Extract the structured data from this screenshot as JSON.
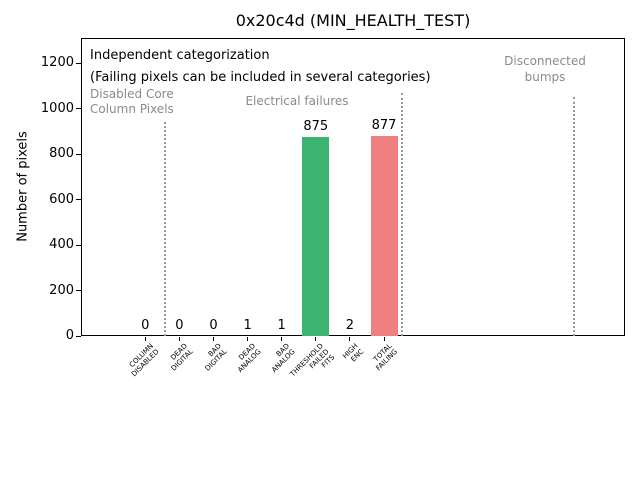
{
  "chart_data": {
    "type": "bar",
    "title": "0x20c4d (MIN_HEALTH_TEST)",
    "ylabel": "Number of pixels",
    "xlabel": "",
    "categories": [
      "COLUMN\nDISABLED",
      "DEAD\nDIGITAL",
      "BAD\nDIGITAL",
      "DEAD\nANALOG",
      "BAD\nANALOG",
      "THRESHOLD\nFAILED\nFITS",
      "HIGH\nENC",
      "TOTAL\nFAILING"
    ],
    "values": [
      0,
      0,
      0,
      1,
      1,
      875,
      2,
      877
    ],
    "bar_colors": [
      null,
      null,
      null,
      null,
      null,
      "#3cb371",
      null,
      "#f08080"
    ],
    "yticks": [
      0,
      200,
      400,
      600,
      800,
      1000,
      1200
    ],
    "ylim": [
      0,
      1310
    ],
    "grid": false,
    "legend": false,
    "annotations": {
      "heading": "Independent categorization",
      "subheading": "(Failing pixels can be included in several categories)",
      "sections": [
        {
          "label": "Disabled Core\nColumn Pixels"
        },
        {
          "label": "Electrical failures"
        },
        {
          "label": "Disconnected\nbumps"
        }
      ]
    },
    "colors": {
      "pass_bar": "#3cb371",
      "fail_bar": "#f08080",
      "section_text": "#8a8a8a",
      "divider": "#999999"
    }
  }
}
